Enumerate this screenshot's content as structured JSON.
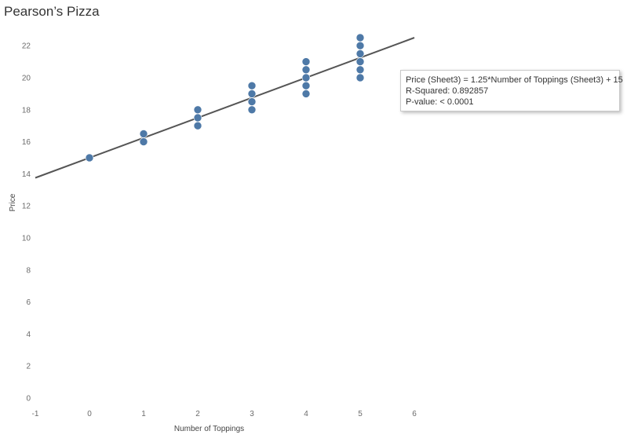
{
  "colors": {
    "point": "#4e79a7",
    "trend_line": "#555555",
    "text": "#333333",
    "tick": "#6b6b6b"
  },
  "chart_data": {
    "type": "scatter",
    "title": "Pearson’s Pizza",
    "xlabel": "Number of Toppings",
    "ylabel": "Price",
    "xlim": [
      -1,
      6
    ],
    "ylim": [
      0,
      23.5
    ],
    "x_ticks": [
      -1,
      0,
      1,
      2,
      3,
      4,
      5,
      6
    ],
    "y_ticks": [
      0,
      2,
      4,
      6,
      8,
      10,
      12,
      14,
      16,
      18,
      20,
      22
    ],
    "grid": false,
    "points": [
      {
        "x": 0,
        "y": 15
      },
      {
        "x": 1,
        "y": 16
      },
      {
        "x": 1,
        "y": 16.5
      },
      {
        "x": 2,
        "y": 17
      },
      {
        "x": 2,
        "y": 17.5
      },
      {
        "x": 2,
        "y": 18
      },
      {
        "x": 3,
        "y": 18
      },
      {
        "x": 3,
        "y": 18.5
      },
      {
        "x": 3,
        "y": 19
      },
      {
        "x": 3,
        "y": 19.5
      },
      {
        "x": 4,
        "y": 19
      },
      {
        "x": 4,
        "y": 19.5
      },
      {
        "x": 4,
        "y": 20
      },
      {
        "x": 4,
        "y": 20.5
      },
      {
        "x": 4,
        "y": 21
      },
      {
        "x": 5,
        "y": 20
      },
      {
        "x": 5,
        "y": 20.5
      },
      {
        "x": 5,
        "y": 21
      },
      {
        "x": 5,
        "y": 21.5
      },
      {
        "x": 5,
        "y": 22
      },
      {
        "x": 5,
        "y": 22.5
      }
    ],
    "trend_line": {
      "slope": 1.25,
      "intercept": 15,
      "x_range": [
        -1,
        6
      ]
    },
    "annotation": {
      "equation": "Price (Sheet3) = 1.25*Number of Toppings (Sheet3) + 15",
      "r_squared": "R-Squared: 0.892857",
      "p_value": "P-value: < 0.0001"
    }
  }
}
